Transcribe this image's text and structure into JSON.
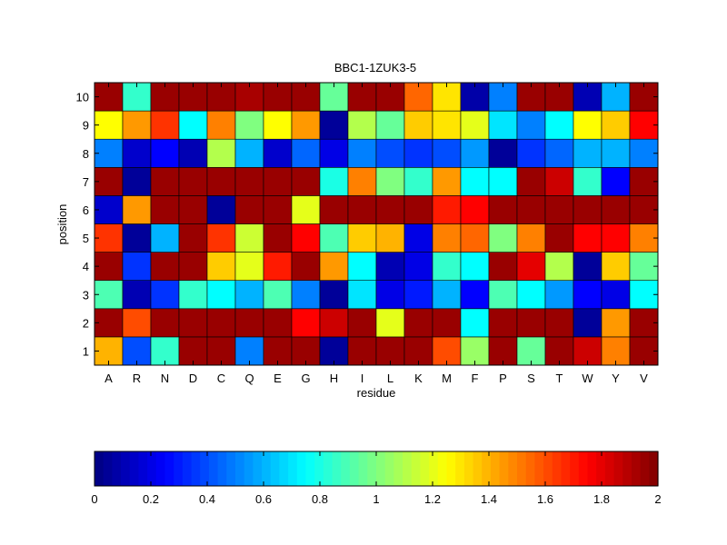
{
  "chart_data": {
    "type": "heatmap",
    "title": "BBC1-1ZUK3-5",
    "xlabel": "residue",
    "ylabel": "position",
    "x_categories": [
      "A",
      "R",
      "N",
      "D",
      "C",
      "Q",
      "E",
      "G",
      "H",
      "I",
      "L",
      "K",
      "M",
      "F",
      "P",
      "S",
      "T",
      "W",
      "Y",
      "V"
    ],
    "y_categories": [
      "1",
      "2",
      "3",
      "4",
      "5",
      "6",
      "7",
      "8",
      "9",
      "10"
    ],
    "colormap": "jet",
    "clim": [
      0,
      2
    ],
    "colorbar": {
      "orientation": "horizontal",
      "placement": "bottom",
      "ticks": [
        0,
        0.2,
        0.4,
        0.6,
        0.8,
        1,
        1.2,
        1.4,
        1.6,
        1.8,
        2
      ],
      "tick_labels": [
        "0",
        "0.2",
        "0.4",
        "0.6",
        "0.8",
        "1",
        "1.2",
        "1.4",
        "1.6",
        "1.8",
        "2"
      ]
    },
    "values_by_position": {
      "10": [
        1.95,
        0.85,
        1.95,
        1.95,
        1.95,
        1.92,
        1.95,
        1.95,
        0.95,
        1.95,
        1.95,
        1.55,
        1.3,
        0.08,
        0.5,
        1.95,
        1.95,
        0.1,
        0.6,
        1.95
      ],
      "9": [
        1.25,
        1.45,
        1.65,
        0.75,
        1.5,
        1.0,
        1.25,
        1.45,
        0.05,
        1.1,
        0.95,
        1.35,
        1.3,
        1.2,
        0.7,
        0.5,
        0.75,
        1.25,
        1.35,
        1.75
      ],
      "8": [
        0.5,
        0.15,
        0.25,
        0.1,
        1.1,
        0.6,
        0.15,
        0.45,
        0.2,
        0.5,
        0.4,
        0.35,
        0.4,
        0.55,
        0.05,
        0.35,
        0.45,
        0.6,
        0.6,
        0.5
      ],
      "7": [
        1.95,
        0.05,
        1.95,
        1.95,
        1.95,
        1.95,
        1.95,
        1.95,
        0.8,
        1.5,
        1.0,
        0.85,
        1.45,
        0.75,
        0.75,
        1.95,
        1.85,
        0.85,
        0.25,
        1.95
      ],
      "6": [
        0.15,
        1.45,
        1.95,
        1.95,
        0.05,
        1.95,
        1.95,
        1.2,
        1.95,
        1.95,
        1.95,
        1.95,
        1.7,
        1.75,
        1.95,
        1.95,
        1.95,
        1.95,
        1.95,
        1.95
      ],
      "5": [
        1.65,
        0.05,
        0.6,
        1.95,
        1.65,
        1.15,
        1.95,
        1.75,
        0.9,
        1.35,
        1.4,
        0.2,
        1.5,
        1.55,
        1.0,
        1.5,
        1.95,
        1.75,
        1.75,
        1.5
      ],
      "4": [
        1.95,
        0.35,
        1.95,
        1.95,
        1.35,
        1.2,
        1.7,
        1.95,
        1.45,
        0.75,
        0.1,
        0.2,
        0.85,
        0.75,
        1.95,
        1.8,
        1.1,
        0.05,
        1.35,
        0.95
      ],
      "3": [
        0.9,
        0.1,
        0.35,
        0.85,
        0.75,
        0.6,
        0.9,
        0.5,
        0.05,
        0.7,
        0.2,
        0.3,
        0.6,
        0.25,
        0.9,
        0.75,
        0.55,
        0.25,
        0.2,
        0.75
      ],
      "2": [
        1.95,
        1.6,
        1.95,
        1.95,
        1.95,
        1.95,
        1.95,
        1.75,
        1.85,
        1.95,
        1.2,
        1.95,
        1.95,
        0.75,
        1.95,
        1.95,
        1.95,
        0.05,
        1.45,
        1.95
      ],
      "1": [
        1.4,
        0.4,
        0.85,
        1.95,
        1.95,
        0.5,
        1.95,
        1.95,
        0.05,
        1.95,
        1.95,
        1.95,
        1.6,
        1.05,
        1.95,
        0.95,
        1.95,
        1.85,
        1.5,
        1.95
      ]
    }
  }
}
